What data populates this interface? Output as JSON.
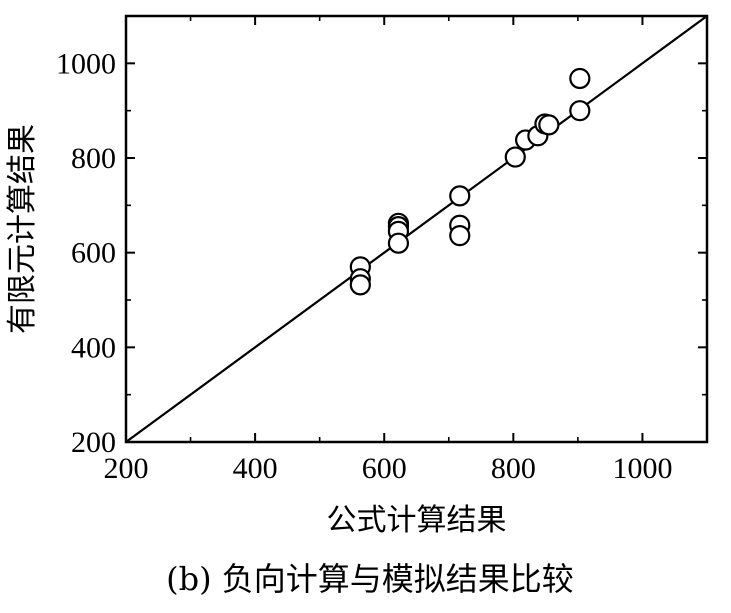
{
  "caption": "(b) 负向计算与模拟结果比较",
  "chart_data": {
    "type": "scatter",
    "title": "",
    "xlabel": "公式计算结果",
    "ylabel": "有限元计算结果",
    "xlim": [
      200,
      1100
    ],
    "ylim": [
      200,
      1100
    ],
    "xticks": [
      200,
      400,
      600,
      800,
      1000
    ],
    "yticks": [
      200,
      400,
      600,
      800,
      1000
    ],
    "x_tick_labels": [
      "200",
      "400",
      "600",
      "800",
      "1000"
    ],
    "y_tick_labels": [
      "200",
      "400",
      "600",
      "800",
      "1000"
    ],
    "grid": false,
    "reference_line": {
      "type": "y=x",
      "from": [
        200,
        200
      ],
      "to": [
        1100,
        1100
      ]
    },
    "series": [
      {
        "marker": "open-circle",
        "points": [
          {
            "x": 563,
            "y": 570
          },
          {
            "x": 563,
            "y": 545
          },
          {
            "x": 563,
            "y": 532
          },
          {
            "x": 622,
            "y": 662
          },
          {
            "x": 622,
            "y": 655
          },
          {
            "x": 622,
            "y": 645
          },
          {
            "x": 622,
            "y": 620
          },
          {
            "x": 717,
            "y": 720
          },
          {
            "x": 717,
            "y": 658
          },
          {
            "x": 717,
            "y": 636
          },
          {
            "x": 803,
            "y": 802
          },
          {
            "x": 819,
            "y": 838
          },
          {
            "x": 838,
            "y": 847
          },
          {
            "x": 849,
            "y": 872
          },
          {
            "x": 855,
            "y": 870
          },
          {
            "x": 903,
            "y": 968
          },
          {
            "x": 903,
            "y": 900
          }
        ]
      }
    ],
    "colors": {
      "axis": "#000000",
      "marker_stroke": "#000000",
      "marker_fill": "#ffffff"
    }
  }
}
